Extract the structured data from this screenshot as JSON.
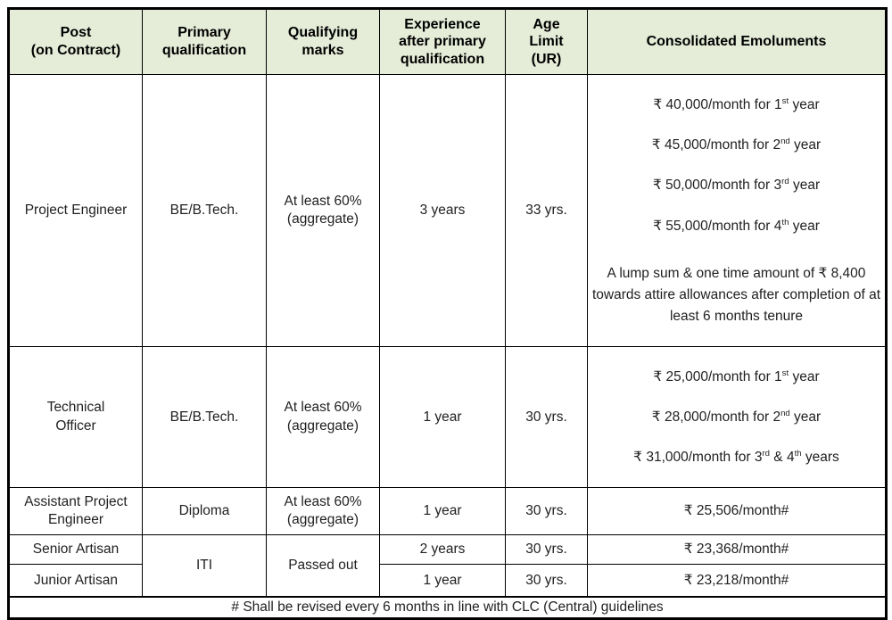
{
  "colors": {
    "header_bg": "#e5ecd8",
    "border": "#000000",
    "text": "#1f1f1f"
  },
  "header": {
    "columns": [
      "Post\n(on Contract)",
      "Primary\nqualification",
      "Qualifying\nmarks",
      "Experience\nafter primary\nqualification",
      "Age\nLimit\n(UR)",
      "Consolidated Emoluments"
    ]
  },
  "rows": [
    {
      "post": "Project Engineer",
      "qualification": "BE/B.Tech.",
      "marks": "At least 60%\n(aggregate)",
      "experience": "3 years",
      "age_limit": "33 yrs.",
      "emoluments": {
        "lines": [
          [
            {
              "t": "₹ 40,000/month for 1"
            },
            {
              "t": "st",
              "sup": true
            },
            {
              "t": " year"
            }
          ],
          [
            {
              "t": "₹ 45,000/month for 2"
            },
            {
              "t": "nd",
              "sup": true
            },
            {
              "t": " year"
            }
          ],
          [
            {
              "t": "₹ 50,000/month for 3"
            },
            {
              "t": "rd",
              "sup": true
            },
            {
              "t": " year"
            }
          ],
          [
            {
              "t": "₹ 55,000/month for 4"
            },
            {
              "t": "th",
              "sup": true
            },
            {
              "t": " year"
            }
          ]
        ],
        "note": "A lump sum & one time amount of ₹ 8,400 towards attire allowances after completion of at least 6 months tenure"
      }
    },
    {
      "post": "Technical\nOfficer",
      "qualification": "BE/B.Tech.",
      "marks": "At least 60%\n(aggregate)",
      "experience": "1 year",
      "age_limit": "30 yrs.",
      "emoluments": {
        "lines": [
          [
            {
              "t": "₹ 25,000/month for 1"
            },
            {
              "t": "st",
              "sup": true
            },
            {
              "t": " year"
            }
          ],
          [
            {
              "t": "₹ 28,000/month for 2"
            },
            {
              "t": "nd",
              "sup": true
            },
            {
              "t": " year"
            }
          ],
          [
            {
              "t": "₹ 31,000/month for 3"
            },
            {
              "t": "rd",
              "sup": true
            },
            {
              "t": " & 4"
            },
            {
              "t": "th",
              "sup": true
            },
            {
              "t": " years"
            }
          ]
        ]
      }
    },
    {
      "post": "Assistant Project\nEngineer",
      "qualification": "Diploma",
      "marks": "At least 60%\n(aggregate)",
      "experience": "1 year",
      "age_limit": "30 yrs.",
      "emoluments": {
        "text": "₹ 25,506/month#"
      }
    },
    {
      "post": "Senior Artisan",
      "qualification": "ITI",
      "marks": "Passed out",
      "experience": "2 years",
      "age_limit": "30 yrs.",
      "emoluments": {
        "text": "₹ 23,368/month#"
      }
    },
    {
      "post": "Junior Artisan",
      "experience": "1 year",
      "age_limit": "30 yrs.",
      "emoluments": {
        "text": "₹ 23,218/month#"
      }
    }
  ],
  "footer": {
    "note": "# Shall be revised every 6 months in line with CLC (Central) guidelines"
  }
}
